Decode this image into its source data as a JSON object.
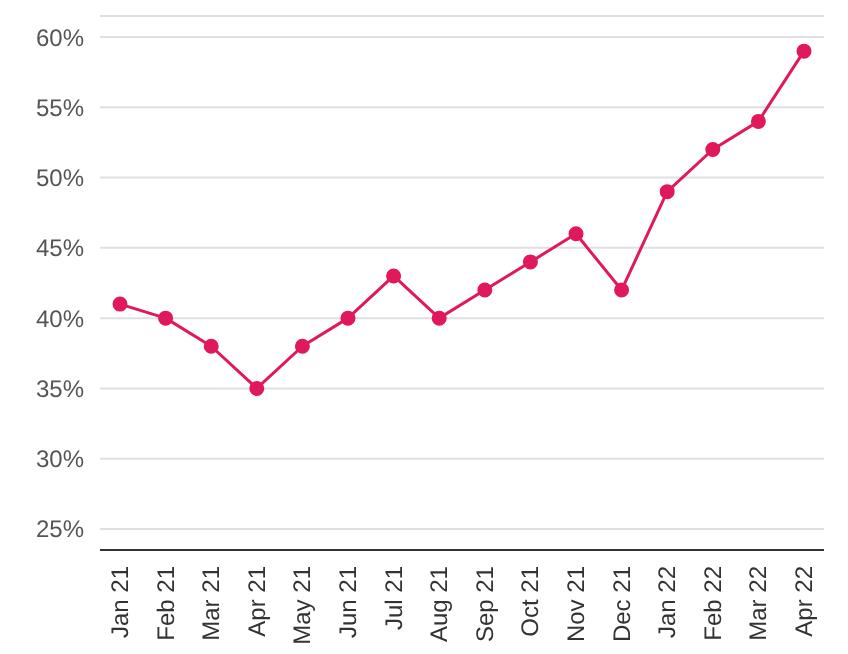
{
  "chart_data": {
    "type": "line",
    "categories": [
      "Jan 21",
      "Feb 21",
      "Mar 21",
      "Apr 21",
      "May 21",
      "Jun 21",
      "Jul 21",
      "Aug 21",
      "Sep 21",
      "Oct 21",
      "Nov 21",
      "Dec 21",
      "Jan 22",
      "Feb 22",
      "Mar 22",
      "Apr 22"
    ],
    "series": [
      {
        "color": "#e0195a",
        "values": [
          41,
          40,
          38,
          35,
          38,
          40,
          43,
          40,
          42,
          44,
          46,
          42,
          49,
          52,
          54,
          59
        ]
      }
    ],
    "ylim": [
      23.5,
      61.5
    ],
    "yticks": [
      {
        "value": 25,
        "label": "25%"
      },
      {
        "value": 30,
        "label": "30%"
      },
      {
        "value": 35,
        "label": "35%"
      },
      {
        "value": 40,
        "label": "40%"
      },
      {
        "value": 45,
        "label": "45%"
      },
      {
        "value": 50,
        "label": "50%"
      },
      {
        "value": 55,
        "label": "55%"
      },
      {
        "value": 60,
        "label": "60%"
      }
    ],
    "grid": "y",
    "marker": "circle",
    "line_style": "solid"
  }
}
